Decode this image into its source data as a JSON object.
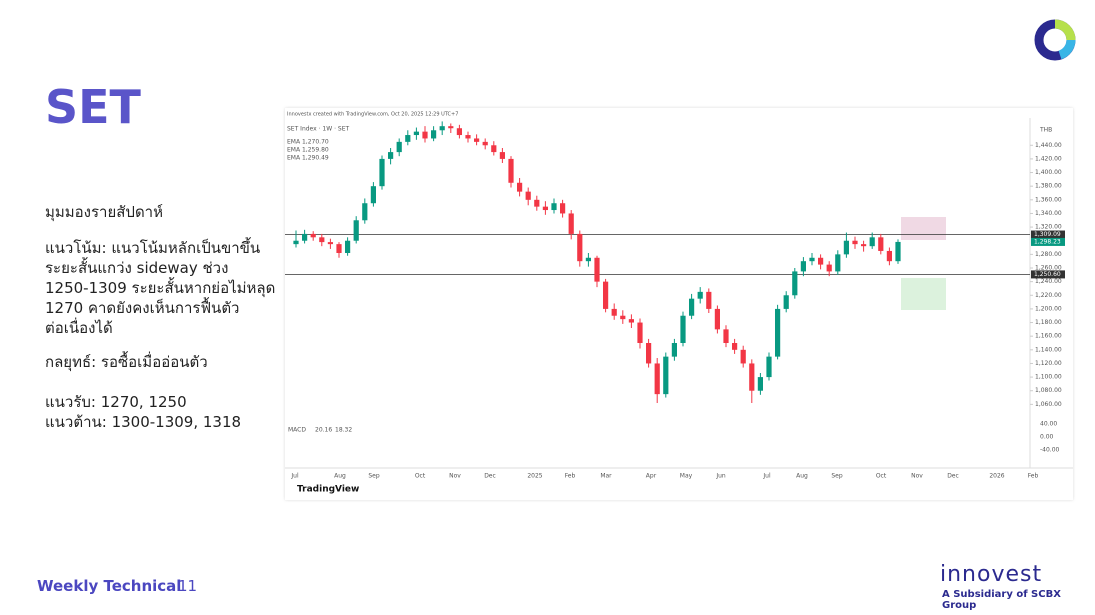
{
  "header": {
    "title": "SET"
  },
  "body": {
    "heading": "มุมมองรายสัปดาห์",
    "lines": [
      "แนวโน้ม: แนวโน้มหลักเป็นขาขึ้น",
      "ระยะสั้นแกว่ง sideway ช่วง",
      "1250-1309 ระยะสั้นหากย่อไม่หลุด",
      "1270 คาดยังคงเห็นการฟื้นตัว",
      "ต่อเนื่องได้"
    ],
    "strategy": "กลยุทธ์: รอซื้อเมื่ออ่อนตัว",
    "support": "แนวรับ: 1270, 1250",
    "resistance": "แนวต้าน: 1300-1309, 1318"
  },
  "chart": {
    "type": "candlestick",
    "credit": "Innovestx created with TradingView.com, Oct 20, 2025 12:29 UTC+7",
    "symbol": "SET Index · 1W · SET",
    "legend": [
      "EMA 1,270.70",
      "EMA 1,259.80",
      "EMA 1,290.49"
    ],
    "currency": "THB",
    "brand": "TradingView",
    "up_color": "#089981",
    "down_color": "#f23645",
    "ylim": [
      1040,
      1480
    ],
    "yticks": [
      {
        "value": 1440,
        "label": "1,440.00"
      },
      {
        "value": 1420,
        "label": "1,420.00"
      },
      {
        "value": 1400,
        "label": "1,400.00"
      },
      {
        "value": 1380,
        "label": "1,380.00"
      },
      {
        "value": 1360,
        "label": "1,360.00"
      },
      {
        "value": 1340,
        "label": "1,340.00"
      },
      {
        "value": 1320,
        "label": "1,320.00"
      },
      {
        "value": 1280,
        "label": "1,280.00"
      },
      {
        "value": 1260,
        "label": "1,260.00"
      },
      {
        "value": 1240,
        "label": "1,240.00"
      },
      {
        "value": 1220,
        "label": "1,220.00"
      },
      {
        "value": 1200,
        "label": "1,200.00"
      },
      {
        "value": 1180,
        "label": "1,180.00"
      },
      {
        "value": 1160,
        "label": "1,160.00"
      },
      {
        "value": 1140,
        "label": "1,140.00"
      },
      {
        "value": 1120,
        "label": "1,120.00"
      },
      {
        "value": 1100,
        "label": "1,100.00"
      },
      {
        "value": 1080,
        "label": "1,080.00"
      },
      {
        "value": 1060,
        "label": "1,060.00"
      }
    ],
    "levels": [
      {
        "value": 1309.09,
        "label": "1,309.09"
      },
      {
        "value": 1250.6,
        "label": "1,250.60"
      }
    ],
    "last_price": {
      "value": 1298.23,
      "label": "1,298.23"
    },
    "months": [
      "Jul",
      "Aug",
      "Sep",
      "Oct",
      "Nov",
      "Dec",
      "2025",
      "Feb",
      "Mar",
      "Apr",
      "May",
      "Jun",
      "Jul",
      "Aug",
      "Sep",
      "Oct",
      "Nov",
      "Dec",
      "2026",
      "Feb"
    ],
    "candles": [
      [
        1295,
        1315,
        1290,
        1300
      ],
      [
        1300,
        1316,
        1296,
        1310
      ],
      [
        1310,
        1314,
        1300,
        1305
      ],
      [
        1305,
        1310,
        1292,
        1298
      ],
      [
        1298,
        1303,
        1288,
        1295
      ],
      [
        1295,
        1298,
        1275,
        1282
      ],
      [
        1282,
        1305,
        1278,
        1300
      ],
      [
        1300,
        1336,
        1296,
        1330
      ],
      [
        1330,
        1362,
        1325,
        1355
      ],
      [
        1355,
        1386,
        1350,
        1380
      ],
      [
        1380,
        1425,
        1375,
        1420
      ],
      [
        1420,
        1436,
        1412,
        1430
      ],
      [
        1430,
        1450,
        1424,
        1445
      ],
      [
        1445,
        1462,
        1440,
        1455
      ],
      [
        1455,
        1466,
        1448,
        1460
      ],
      [
        1460,
        1468,
        1444,
        1450
      ],
      [
        1450,
        1468,
        1446,
        1462
      ],
      [
        1462,
        1475,
        1455,
        1468
      ],
      [
        1468,
        1472,
        1458,
        1465
      ],
      [
        1465,
        1470,
        1450,
        1455
      ],
      [
        1455,
        1460,
        1444,
        1450
      ],
      [
        1450,
        1456,
        1440,
        1445
      ],
      [
        1445,
        1450,
        1434,
        1440
      ],
      [
        1440,
        1446,
        1425,
        1430
      ],
      [
        1430,
        1436,
        1414,
        1420
      ],
      [
        1420,
        1424,
        1378,
        1385
      ],
      [
        1385,
        1392,
        1365,
        1372
      ],
      [
        1372,
        1378,
        1352,
        1360
      ],
      [
        1360,
        1366,
        1344,
        1350
      ],
      [
        1350,
        1358,
        1338,
        1345
      ],
      [
        1345,
        1362,
        1340,
        1355
      ],
      [
        1355,
        1360,
        1334,
        1340
      ],
      [
        1340,
        1345,
        1302,
        1310
      ],
      [
        1310,
        1315,
        1262,
        1270
      ],
      [
        1270,
        1282,
        1262,
        1275
      ],
      [
        1275,
        1278,
        1232,
        1240
      ],
      [
        1240,
        1244,
        1195,
        1200
      ],
      [
        1200,
        1208,
        1184,
        1190
      ],
      [
        1190,
        1198,
        1178,
        1185
      ],
      [
        1185,
        1192,
        1172,
        1180
      ],
      [
        1180,
        1186,
        1142,
        1150
      ],
      [
        1150,
        1156,
        1114,
        1120
      ],
      [
        1120,
        1128,
        1062,
        1075
      ],
      [
        1075,
        1136,
        1070,
        1130
      ],
      [
        1130,
        1156,
        1124,
        1150
      ],
      [
        1150,
        1196,
        1145,
        1190
      ],
      [
        1190,
        1222,
        1185,
        1215
      ],
      [
        1215,
        1232,
        1208,
        1225
      ],
      [
        1225,
        1230,
        1194,
        1200
      ],
      [
        1200,
        1205,
        1164,
        1170
      ],
      [
        1170,
        1176,
        1144,
        1150
      ],
      [
        1150,
        1156,
        1134,
        1140
      ],
      [
        1140,
        1146,
        1114,
        1120
      ],
      [
        1120,
        1126,
        1062,
        1080
      ],
      [
        1080,
        1106,
        1074,
        1100
      ],
      [
        1100,
        1136,
        1095,
        1130
      ],
      [
        1130,
        1206,
        1126,
        1200
      ],
      [
        1200,
        1226,
        1195,
        1220
      ],
      [
        1220,
        1260,
        1215,
        1255
      ],
      [
        1255,
        1276,
        1248,
        1270
      ],
      [
        1270,
        1282,
        1264,
        1275
      ],
      [
        1275,
        1280,
        1258,
        1265
      ],
      [
        1265,
        1270,
        1248,
        1255
      ],
      [
        1255,
        1286,
        1250,
        1280
      ],
      [
        1280,
        1312,
        1275,
        1300
      ],
      [
        1300,
        1306,
        1288,
        1295
      ],
      [
        1295,
        1300,
        1284,
        1292
      ],
      [
        1292,
        1312,
        1288,
        1305
      ],
      [
        1305,
        1310,
        1280,
        1285
      ],
      [
        1285,
        1290,
        1264,
        1270
      ],
      [
        1270,
        1302,
        1266,
        1298.23
      ]
    ],
    "macd": {
      "label": "MACD",
      "values_text": [
        "20.16",
        "18.32"
      ],
      "ticks": [
        "40.00",
        "0.00",
        "-40.00"
      ]
    }
  },
  "footer": {
    "section": "Weekly Technical",
    "page": "11",
    "brand": "innovest",
    "tagline": "A Subsidiary of SCBX Group"
  }
}
